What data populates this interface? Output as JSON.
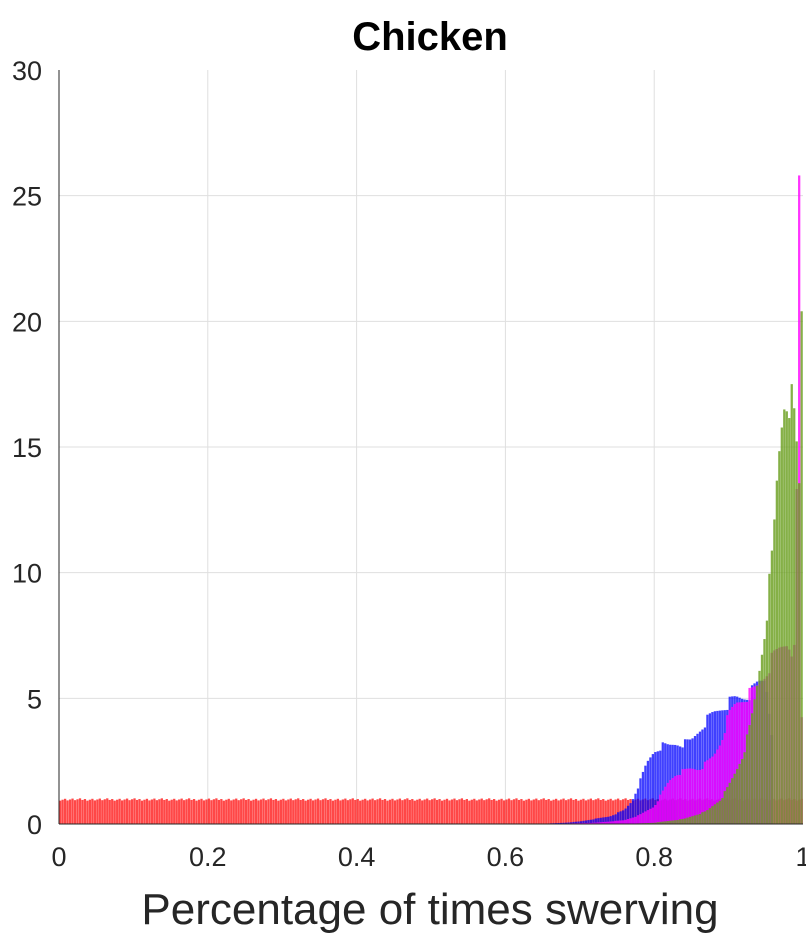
{
  "chart_data": {
    "type": "histogram",
    "title": "Chicken",
    "xlabel": "Percentage of times swerving",
    "ylabel": "",
    "xlim": [
      0,
      1
    ],
    "ylim": [
      0,
      30
    ],
    "xticks": [
      "0",
      "0.2",
      "0.4",
      "0.6",
      "0.8",
      "1"
    ],
    "yticks": [
      "0",
      "5",
      "10",
      "15",
      "20",
      "25",
      "30"
    ],
    "grid": true,
    "series": [
      {
        "color": "#ff0000",
        "opacity": 0.72,
        "x": [
          0.0,
          0.7734
        ],
        "y": [
          1.0,
          1.0
        ]
      },
      {
        "color": "#0000ff",
        "opacity": 0.75,
        "x": [
          0.64,
          0.68,
          0.7,
          0.72,
          0.74,
          0.76,
          0.77,
          0.78,
          0.79,
          0.8,
          0.81,
          0.82,
          0.83,
          0.84,
          0.85,
          0.86,
          0.87,
          0.88,
          0.89,
          0.9,
          0.91,
          0.92,
          0.93,
          0.94,
          0.95,
          0.96
        ],
        "y": [
          0.0,
          0.05,
          0.1,
          0.2,
          0.3,
          0.55,
          0.9,
          1.6,
          2.4,
          2.9,
          3.1,
          3.1,
          3.2,
          3.2,
          3.3,
          3.7,
          4.1,
          4.4,
          4.6,
          4.8,
          5.0,
          5.05,
          5.2,
          5.6,
          5.8,
          3.3
        ]
      },
      {
        "color": "#ff00ff",
        "opacity": 0.8,
        "x": [
          0.66,
          0.72,
          0.76,
          0.78,
          0.8,
          0.81,
          0.82,
          0.83,
          0.84,
          0.85,
          0.86,
          0.87,
          0.88,
          0.89,
          0.9,
          0.91,
          0.92,
          0.93,
          0.94,
          0.95,
          0.96,
          0.97,
          0.98,
          0.99,
          0.995,
          0.999
        ],
        "y": [
          0.0,
          0.05,
          0.15,
          0.35,
          0.7,
          1.2,
          1.7,
          2.0,
          2.1,
          2.2,
          2.2,
          2.4,
          2.7,
          3.3,
          4.3,
          4.8,
          5.0,
          5.2,
          5.5,
          6.0,
          6.6,
          7.0,
          7.3,
          6.7,
          25.2,
          0.0
        ]
      },
      {
        "color": "#6a9f1e",
        "opacity": 0.82,
        "x": [
          0.76,
          0.8,
          0.84,
          0.87,
          0.89,
          0.9,
          0.91,
          0.92,
          0.93,
          0.94,
          0.95,
          0.96,
          0.965,
          0.97,
          0.975,
          0.98,
          0.985,
          0.99,
          0.995,
          0.999
        ],
        "y": [
          0.0,
          0.05,
          0.2,
          0.5,
          1.0,
          1.5,
          2.1,
          2.8,
          4.0,
          5.8,
          8.0,
          11.0,
          13.5,
          15.5,
          16.9,
          17.1,
          16.7,
          15.6,
          13.4,
          21.8
        ]
      }
    ]
  }
}
